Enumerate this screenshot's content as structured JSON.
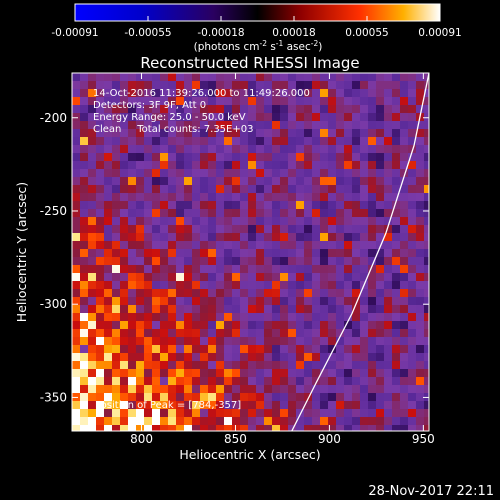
{
  "chart_data": {
    "type": "heatmap",
    "title": "Reconstructed RHESSI Image",
    "xlabel": "Heliocentric X (arcsec)",
    "ylabel": "Heliocentric Y (arcsec)",
    "xlim": [
      763,
      953
    ],
    "ylim": [
      -368,
      -176
    ],
    "xticks": [
      800,
      850,
      900,
      950
    ],
    "yticks": [
      -200,
      -250,
      -300,
      -350
    ],
    "colorbar": {
      "range": [
        -0.00091,
        0.00091
      ],
      "ticks": [
        "-0.00091",
        "-0.00055",
        "-0.00018",
        "0.00018",
        "0.00055",
        "0.00091"
      ],
      "unit_prefix": "(photons cm",
      "unit_sup1": "-2",
      "unit_mid1": " s",
      "unit_sup2": "-1",
      "unit_mid2": " asec",
      "unit_sup3": "-2",
      "unit_suffix": ")"
    },
    "annotations": [
      "14-Oct-2016 11:39:26.000 to 11:49:26.000",
      "Detectors: 3F 9F, Att 0",
      "Energy Range: 25.0 - 50.0 keV",
      "Clean     Total counts: 7.35E+03"
    ],
    "peak_label": "Position of Peak = [784,-357]",
    "peak": [
      784,
      -357
    ],
    "limb_curve": [
      [
        953,
        -176
      ],
      [
        945,
        -215
      ],
      [
        930,
        -262
      ],
      [
        912,
        -305
      ],
      [
        893,
        -342
      ],
      [
        880,
        -368
      ]
    ],
    "colors": {
      "background": "#000000",
      "text": "#ffffff"
    }
  },
  "footer": {
    "timestamp": "28-Nov-2017 22:11"
  }
}
